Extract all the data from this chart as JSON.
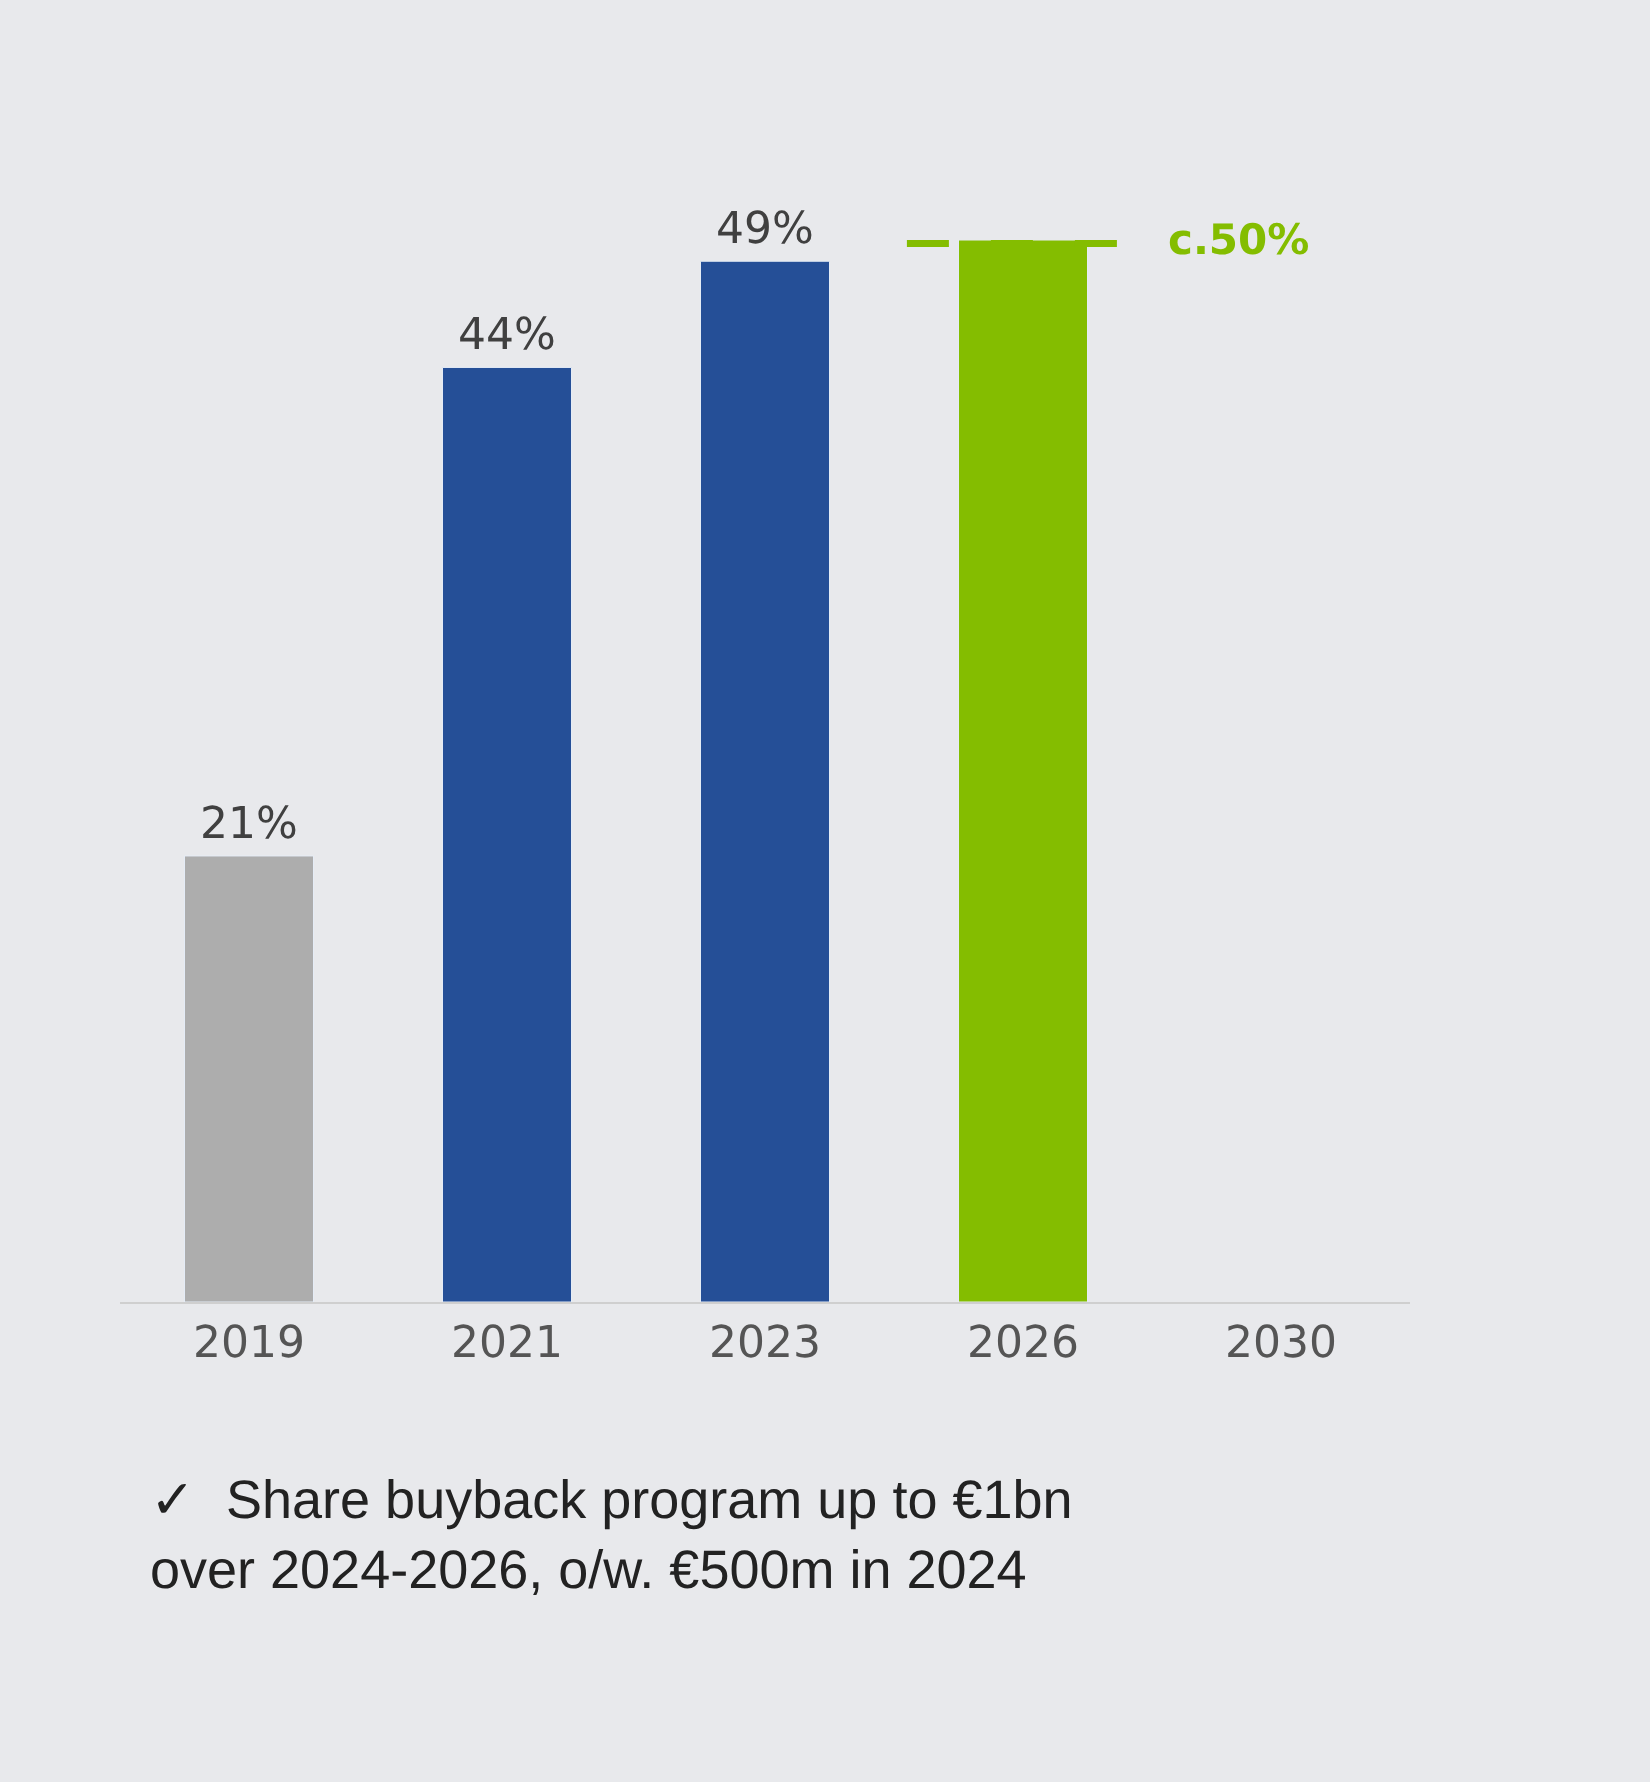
{
  "chart_data": {
    "type": "bar",
    "categories": [
      "2019",
      "2021",
      "2023",
      "2026",
      "2030"
    ],
    "values": [
      21,
      44,
      49,
      50,
      null
    ],
    "colors": [
      "#adadad",
      "#254f97",
      "#254f97",
      "#84bd00",
      "#84bd00"
    ],
    "value_labels": [
      "21%",
      "44%",
      "49%",
      null,
      null
    ],
    "ref_lines": [
      {
        "axis": "y",
        "value": 50,
        "label": "c.50%",
        "color": "#84bd00",
        "line_style": "dashed"
      }
    ],
    "annotations": [
      "✓  Share buyback program up to €1bn\nover 2024-2026, o/w. €500m in 2024"
    ],
    "grid": false,
    "legend": false
  }
}
